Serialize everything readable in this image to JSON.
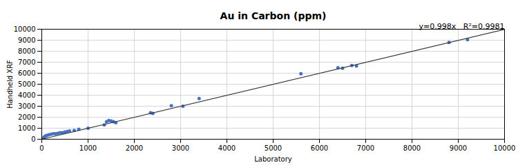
{
  "chart_data": {
    "type": "scatter",
    "title": "Au in Carbon (ppm)",
    "xlabel": "Laboratory",
    "ylabel": "Handheld XRF",
    "annotation": "y=0.998x   R²=0.9981",
    "xlim": [
      0,
      10000
    ],
    "ylim": [
      0,
      10000
    ],
    "xticks": [
      0,
      1000,
      2000,
      3000,
      4000,
      5000,
      6000,
      7000,
      8000,
      9000,
      10000
    ],
    "yticks": [
      0,
      1000,
      2000,
      3000,
      4000,
      5000,
      6000,
      7000,
      8000,
      9000,
      10000
    ],
    "grid": true,
    "series": [
      {
        "type": "scatter",
        "color": "#4472c4",
        "x": [
          10,
          30,
          50,
          80,
          110,
          150,
          200,
          250,
          300,
          350,
          400,
          450,
          500,
          550,
          600,
          700,
          800,
          1000,
          1350,
          1400,
          1450,
          1500,
          1550,
          1600,
          2350,
          2400,
          2800,
          3050,
          3400,
          5600,
          6400,
          6500,
          6700,
          6800,
          8800,
          9200
        ],
        "values": [
          20,
          100,
          200,
          300,
          350,
          400,
          450,
          500,
          500,
          550,
          600,
          600,
          650,
          700,
          750,
          800,
          900,
          1000,
          1300,
          1600,
          1700,
          1650,
          1600,
          1500,
          2400,
          2350,
          3050,
          3000,
          3700,
          5950,
          6500,
          6450,
          6700,
          6650,
          8800,
          9050
        ]
      },
      {
        "type": "line",
        "color": "#3a3a3a",
        "x": [
          0,
          10000
        ],
        "values": [
          0,
          9980
        ]
      }
    ]
  }
}
